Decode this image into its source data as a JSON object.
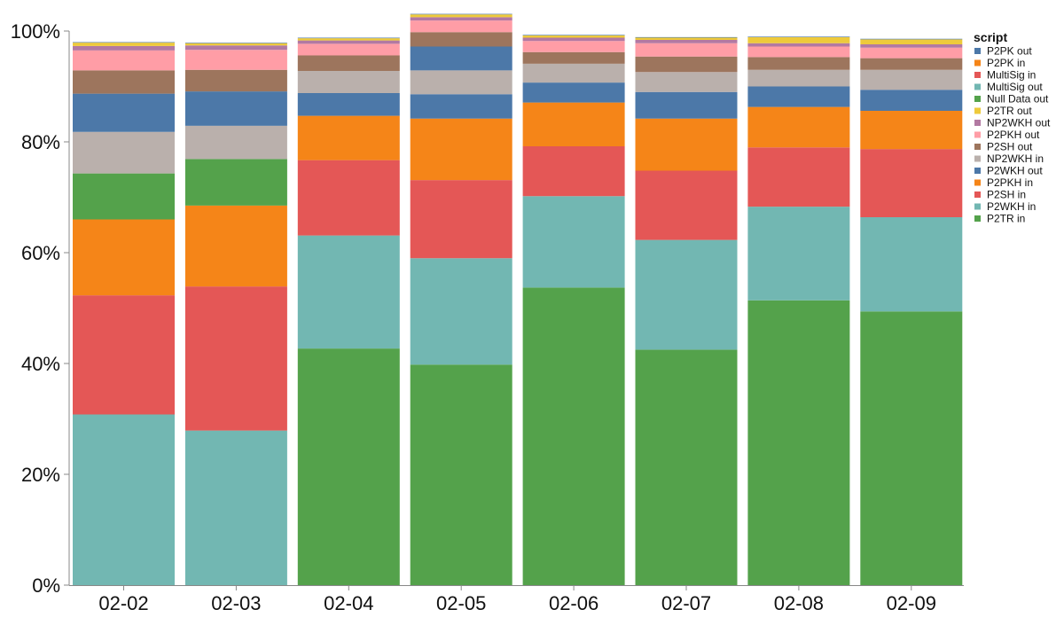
{
  "chart_data": {
    "type": "bar",
    "stacked": true,
    "normalized": true,
    "categories": [
      "02-02",
      "02-03",
      "02-04",
      "02-05",
      "02-06",
      "02-07",
      "02-08",
      "02-09"
    ],
    "ylim": [
      0,
      100
    ],
    "yticks": [
      "0%",
      "20%",
      "40%",
      "60%",
      "80%",
      "100%"
    ],
    "grid": false,
    "legend": {
      "title": "script",
      "position": "top-right",
      "entries": [
        {
          "name": "P2PK out",
          "color": "#4c78a8"
        },
        {
          "name": "P2PK in",
          "color": "#f58518"
        },
        {
          "name": "MultiSig in",
          "color": "#e45756"
        },
        {
          "name": "MultiSig out",
          "color": "#72b7b2"
        },
        {
          "name": "Null Data out",
          "color": "#54a24b"
        },
        {
          "name": "P2TR out",
          "color": "#eeca3b"
        },
        {
          "name": "NP2WKH out",
          "color": "#b279a2"
        },
        {
          "name": "P2PKH out",
          "color": "#ff9da6"
        },
        {
          "name": "P2SH out",
          "color": "#9d755d"
        },
        {
          "name": "NP2WKH in",
          "color": "#bab0ac"
        },
        {
          "name": "P2WKH out",
          "color": "#4c78a8"
        },
        {
          "name": "P2PKH in",
          "color": "#f58518"
        },
        {
          "name": "P2SH in",
          "color": "#e45756"
        },
        {
          "name": "P2WKH in",
          "color": "#72b7b2"
        },
        {
          "name": "P2TR in",
          "color": "#54a24b"
        }
      ]
    },
    "series": [
      {
        "name": "P2TR in",
        "color": "#54a24b",
        "values": [
          0,
          0,
          42.7,
          39.8,
          53.7,
          42.5,
          51.4,
          49.4
        ]
      },
      {
        "name": "P2WKH in",
        "color": "#72b7b2",
        "values": [
          30.8,
          27.9,
          20.4,
          19.2,
          16.5,
          19.8,
          16.9,
          17.0
        ]
      },
      {
        "name": "P2SH in",
        "color": "#e45756",
        "values": [
          21.5,
          26.0,
          13.6,
          14.1,
          9.0,
          12.5,
          10.7,
          12.3
        ]
      },
      {
        "name": "P2PKH in",
        "color": "#f58518",
        "values": [
          13.7,
          14.6,
          8.0,
          11.1,
          7.9,
          9.4,
          7.3,
          6.9
        ]
      },
      {
        "name": "Null Data out",
        "color": "#54a24b",
        "values": [
          8.3,
          8.4,
          0,
          0,
          0,
          0,
          0,
          0
        ]
      },
      {
        "name": "NP2WKH in",
        "color": "#bab0ac",
        "values": [
          7.5,
          6.0,
          0,
          0,
          0,
          0,
          0,
          0
        ]
      },
      {
        "name": "P2WKH out",
        "color": "#4c78a8",
        "values": [
          6.9,
          6.2,
          4.1,
          4.4,
          3.6,
          4.8,
          3.7,
          3.8
        ]
      },
      {
        "name": "NP2WKH in",
        "color": "#bab0ac",
        "values": [
          0,
          0,
          4.0,
          4.3,
          3.4,
          3.6,
          3.0,
          3.6
        ]
      },
      {
        "name": "P2WKH out",
        "color": "#4c78a8",
        "values": [
          0,
          0,
          0,
          4.3,
          0,
          0,
          0,
          0
        ]
      },
      {
        "name": "P2SH out",
        "color": "#9d755d",
        "values": [
          4.2,
          3.9,
          2.8,
          2.6,
          2.1,
          2.8,
          2.3,
          2.1
        ]
      },
      {
        "name": "P2PKH out",
        "color": "#ff9da6",
        "values": [
          3.6,
          3.6,
          2.1,
          2.1,
          2.0,
          2.4,
          1.9,
          1.9
        ]
      },
      {
        "name": "NP2WKH out",
        "color": "#b279a2",
        "values": [
          0.8,
          0.8,
          0.6,
          0.6,
          0.6,
          0.6,
          0.6,
          0.6
        ]
      },
      {
        "name": "P2TR out",
        "color": "#eeca3b",
        "values": [
          0.6,
          0.4,
          0.4,
          0.5,
          0.4,
          0.4,
          1.1,
          0.9
        ]
      },
      {
        "name": "P2PK out",
        "color": "#4c78a8",
        "values": [
          0.1,
          0.1,
          0.1,
          0.1,
          0.1,
          0.1,
          0.1,
          0.1
        ]
      }
    ]
  }
}
